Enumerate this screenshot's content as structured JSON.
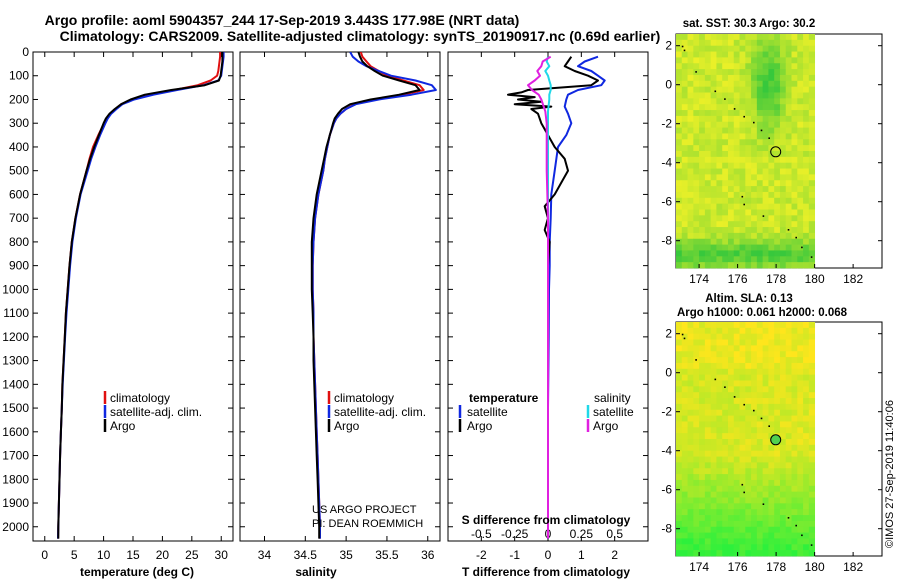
{
  "title": {
    "line1": "Argo profile: aoml 5904357_244 17-Sep-2019 3.443S 177.98E (NRT data)",
    "line2": "Climatology: CARS2009. Satellite-adjusted climatology: synTS_20190917.nc (0.69d earlier)"
  },
  "colors": {
    "climatology": "#e01010",
    "satellite": "#1028e0",
    "argo": "#000000",
    "sat_salinity": "#20d8e8",
    "argo_salinity": "#e020e0"
  },
  "depth_ticks": [
    "0",
    "100",
    "200",
    "300",
    "400",
    "500",
    "600",
    "700",
    "800",
    "900",
    "1000",
    "1100",
    "1200",
    "1300",
    "1400",
    "1500",
    "1600",
    "1700",
    "1800",
    "1900",
    "2000"
  ],
  "legend_profiles": {
    "climatology": "climatology",
    "satellite": "satellite-adj. clim.",
    "argo": "Argo"
  },
  "legend_diff": {
    "temperature_heading": "temperature",
    "salinity_heading": "salinity",
    "t_satellite": "satellite",
    "t_argo": "Argo",
    "s_satellite": "satellite",
    "s_argo": "Argo"
  },
  "credit": {
    "line1": "US ARGO PROJECT",
    "line2": "PI: DEAN ROEMMICH"
  },
  "timestamp": "©IMOS 27-Sep-2019 11:40:06",
  "map_top": {
    "title": "sat. SST: 30.3 Argo: 30.2"
  },
  "map_bottom": {
    "title1": "Altim. SLA: 0.13",
    "title2": "Argo h1000: 0.061 h2000: 0.068"
  },
  "chart_data": [
    {
      "type": "line",
      "name": "temperature",
      "xlabel": "temperature (deg C)",
      "ylabel": "",
      "xlim": [
        -2,
        32
      ],
      "ylim": [
        2060,
        0
      ],
      "xticks": [
        "0",
        "5",
        "10",
        "15",
        "20",
        "25",
        "30"
      ],
      "depth": [
        0,
        20,
        40,
        60,
        80,
        100,
        120,
        140,
        160,
        180,
        200,
        220,
        240,
        260,
        280,
        300,
        350,
        400,
        450,
        500,
        600,
        700,
        800,
        900,
        1000,
        1100,
        1200,
        1300,
        1400,
        1500,
        1600,
        1700,
        1800,
        1900,
        2000,
        2050
      ],
      "series": [
        {
          "name": "climatology",
          "values": [
            29.8,
            29.8,
            29.7,
            29.6,
            29.5,
            29.3,
            28.2,
            26.0,
            22.0,
            18.0,
            15.0,
            13.0,
            12.0,
            11.2,
            10.6,
            10.1,
            9.1,
            8.2,
            7.6,
            7.1,
            6.0,
            5.2,
            4.6,
            4.2,
            3.9,
            3.6,
            3.4,
            3.2,
            3.0,
            2.9,
            2.75,
            2.6,
            2.5,
            2.4,
            2.3,
            2.25
          ]
        },
        {
          "name": "satellite-adj. clim.",
          "values": [
            30.4,
            30.4,
            30.3,
            30.2,
            30.1,
            30.0,
            29.5,
            27.0,
            22.5,
            18.5,
            15.2,
            13.2,
            12.2,
            11.3,
            10.7,
            10.3,
            9.4,
            8.6,
            7.9,
            7.3,
            6.1,
            5.3,
            4.7,
            4.3,
            4.0,
            3.7,
            3.45,
            3.25,
            3.05,
            2.9,
            2.75,
            2.6,
            2.5,
            2.4,
            2.3,
            2.25
          ]
        },
        {
          "name": "Argo",
          "values": [
            30.2,
            30.2,
            30.2,
            30.1,
            30.0,
            29.9,
            29.6,
            27.2,
            21.5,
            17.0,
            14.6,
            13.0,
            11.9,
            11.0,
            10.4,
            10.0,
            9.2,
            8.4,
            7.7,
            7.1,
            6.0,
            5.2,
            4.6,
            4.2,
            3.9,
            3.6,
            3.4,
            3.2,
            3.0,
            2.9,
            2.75,
            2.6,
            2.5,
            2.4,
            2.3,
            2.3
          ]
        }
      ]
    },
    {
      "type": "line",
      "name": "salinity",
      "xlabel": "salinity",
      "ylabel": "",
      "xlim": [
        33.7,
        36.15
      ],
      "ylim": [
        2060,
        0
      ],
      "xticks": [
        "34",
        "34.5",
        "35",
        "35.5",
        "36"
      ],
      "depth": [
        0,
        20,
        40,
        60,
        80,
        100,
        120,
        140,
        160,
        180,
        200,
        220,
        240,
        260,
        280,
        300,
        350,
        400,
        450,
        500,
        600,
        700,
        800,
        900,
        1000,
        1100,
        1200,
        1300,
        1400,
        1500,
        1600,
        1700,
        1800,
        1900,
        2000,
        2050
      ],
      "series": [
        {
          "name": "climatology",
          "values": [
            35.18,
            35.2,
            35.25,
            35.3,
            35.4,
            35.5,
            35.7,
            35.9,
            35.95,
            35.7,
            35.35,
            35.1,
            35.0,
            34.93,
            34.88,
            34.85,
            34.8,
            34.77,
            34.74,
            34.72,
            34.66,
            34.62,
            34.6,
            34.59,
            34.59,
            34.6,
            34.6,
            34.61,
            34.62,
            34.63,
            34.64,
            34.65,
            34.66,
            34.67,
            34.68,
            34.68
          ]
        },
        {
          "name": "satellite-adj. clim.",
          "values": [
            35.05,
            35.08,
            35.15,
            35.25,
            35.4,
            35.55,
            35.85,
            36.05,
            36.1,
            35.8,
            35.4,
            35.12,
            35.0,
            34.93,
            34.88,
            34.85,
            34.8,
            34.77,
            34.74,
            34.72,
            34.66,
            34.62,
            34.6,
            34.59,
            34.59,
            34.6,
            34.6,
            34.61,
            34.62,
            34.63,
            34.64,
            34.65,
            34.66,
            34.67,
            34.68,
            34.68
          ]
        },
        {
          "name": "Argo",
          "values": [
            35.15,
            35.17,
            35.2,
            35.26,
            35.35,
            35.45,
            35.65,
            35.85,
            35.9,
            35.65,
            35.3,
            35.05,
            34.95,
            34.9,
            34.86,
            34.84,
            34.8,
            34.76,
            34.73,
            34.7,
            34.64,
            34.6,
            34.58,
            34.58,
            34.58,
            34.59,
            34.6,
            34.6,
            34.61,
            34.62,
            34.63,
            34.64,
            34.65,
            34.66,
            34.67,
            34.67
          ]
        }
      ]
    },
    {
      "type": "line",
      "name": "difference from climatology",
      "xlabel": "T difference from climatology",
      "x2label": "S difference from climatology",
      "xlim": [
        -3,
        3
      ],
      "x2lim": [
        -0.75,
        0.75
      ],
      "ylim": [
        2060,
        0
      ],
      "xticks": [
        "-2",
        "-1",
        "0",
        "1",
        "2"
      ],
      "x2ticks": [
        "-0.5",
        "-0.25",
        "0",
        "0.25",
        "0.5"
      ],
      "series": [
        {
          "name": "temperature satellite",
          "axis": "T",
          "depth": [
            20,
            40,
            60,
            80,
            100,
            120,
            140,
            160,
            180,
            200,
            230,
            260,
            300,
            350,
            400,
            500,
            600,
            700,
            800,
            900,
            1000,
            1200,
            1500,
            1800,
            2000,
            2050
          ],
          "values": [
            1.5,
            1.1,
            0.9,
            1.3,
            1.5,
            1.7,
            1.6,
            0.9,
            0.6,
            0.55,
            0.5,
            0.6,
            0.7,
            0.55,
            0.3,
            0.2,
            0.1,
            0.08,
            0.05,
            0.05,
            0.03,
            0.02,
            0.0,
            0.0,
            0.0,
            0.0
          ]
        },
        {
          "name": "temperature Argo",
          "axis": "T",
          "depth": [
            20,
            40,
            60,
            80,
            100,
            120,
            140,
            160,
            170,
            180,
            190,
            200,
            210,
            220,
            230,
            240,
            260,
            300,
            350,
            400,
            450,
            500,
            550,
            600,
            650,
            700,
            750,
            800,
            900,
            1000,
            1200,
            1500,
            1800,
            2000,
            2050
          ],
          "values": [
            0.7,
            0.6,
            0.5,
            0.8,
            1.2,
            1.5,
            1.3,
            -0.6,
            -0.8,
            -1.2,
            -0.4,
            -0.9,
            -0.2,
            -1.0,
            0.1,
            -0.5,
            -0.3,
            -0.2,
            0.0,
            0.2,
            0.5,
            0.6,
            0.4,
            0.2,
            -0.1,
            0.0,
            -0.1,
            0.05,
            0.0,
            0.0,
            0.0,
            0.0,
            0.0,
            0.0,
            0.0
          ]
        },
        {
          "name": "salinity satellite",
          "axis": "S",
          "depth": [
            20,
            40,
            60,
            80,
            100,
            120,
            140,
            160,
            180,
            200,
            250,
            300,
            400,
            500,
            700,
            1000,
            1500,
            1800,
            2000,
            2050
          ],
          "values": [
            0.0,
            -0.01,
            0.01,
            -0.02,
            0.0,
            0.01,
            0.02,
            0.02,
            0.01,
            0.01,
            0.0,
            0.0,
            0.0,
            0.0,
            0.0,
            0.0,
            0.0,
            0.0,
            0.0,
            0.0
          ]
        },
        {
          "name": "salinity Argo",
          "axis": "S",
          "depth": [
            20,
            40,
            60,
            80,
            100,
            120,
            140,
            160,
            180,
            200,
            250,
            300,
            400,
            500,
            700,
            1000,
            1500,
            1800,
            2000,
            2050
          ],
          "values": [
            0.02,
            -0.04,
            -0.05,
            -0.08,
            -0.06,
            -0.1,
            -0.15,
            -0.12,
            -0.07,
            -0.05,
            -0.02,
            -0.01,
            -0.01,
            -0.01,
            0.0,
            0.0,
            0.0,
            0.0,
            0.0,
            0.0
          ]
        }
      ]
    },
    {
      "type": "heatmap",
      "name": "SST map",
      "title": "sat. SST: 30.3 Argo: 30.2",
      "xlim": [
        172.8,
        183.5
      ],
      "ylim": [
        -9.4,
        2.6
      ],
      "xticks": [
        "174",
        "176",
        "178",
        "180",
        "182"
      ],
      "yticks": [
        "2",
        "0",
        "-2",
        "-4",
        "-6",
        "-8"
      ],
      "argo_position": [
        177.98,
        -3.443
      ]
    },
    {
      "type": "heatmap",
      "name": "SLA map",
      "title": "Altim. SLA: 0.13",
      "xlim": [
        172.8,
        183.5
      ],
      "ylim": [
        -9.4,
        2.6
      ],
      "xticks": [
        "174",
        "176",
        "178",
        "180",
        "182"
      ],
      "yticks": [
        "2",
        "0",
        "-2",
        "-4",
        "-6",
        "-8"
      ],
      "argo_position": [
        177.98,
        -3.443
      ]
    }
  ]
}
